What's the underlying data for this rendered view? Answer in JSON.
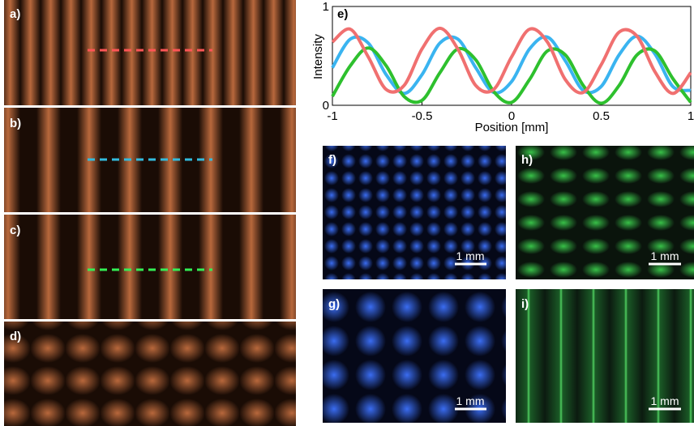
{
  "panels": [
    {
      "label": "a)"
    },
    {
      "label": "b)"
    },
    {
      "label": "c)"
    },
    {
      "label": "d)"
    },
    {
      "label": "f)",
      "scale": "1 mm"
    },
    {
      "label": "h)",
      "scale": "1 mm"
    },
    {
      "label": "g)",
      "scale": "1 mm"
    },
    {
      "label": "i)",
      "scale": "1 mm"
    }
  ],
  "chart_data": {
    "type": "line",
    "label": "e)",
    "xlabel": "Position [mm]",
    "ylabel": "Intensity",
    "x": [
      -1,
      -0.9,
      -0.8,
      -0.7,
      -0.6,
      -0.5,
      -0.4,
      -0.3,
      -0.2,
      -0.1,
      0,
      0.1,
      0.2,
      0.3,
      0.4,
      0.5,
      0.6,
      0.7,
      0.8,
      0.9,
      1
    ],
    "series": [
      {
        "color": "#3ab4f0",
        "values": [
          0.38,
          0.67,
          0.63,
          0.31,
          0.12,
          0.31,
          0.63,
          0.67,
          0.38,
          0.13,
          0.24,
          0.57,
          0.69,
          0.45,
          0.15,
          0.19,
          0.51,
          0.7,
          0.52,
          0.19,
          0.15
        ]
      },
      {
        "color": "#2ec02e",
        "values": [
          0.09,
          0.4,
          0.58,
          0.4,
          0.09,
          0.05,
          0.33,
          0.57,
          0.46,
          0.14,
          0.03,
          0.26,
          0.55,
          0.51,
          0.2,
          0.02,
          0.2,
          0.51,
          0.55,
          0.27,
          0.03
        ]
      },
      {
        "color": "#f07070",
        "values": [
          0.64,
          0.77,
          0.49,
          0.16,
          0.2,
          0.57,
          0.78,
          0.57,
          0.2,
          0.16,
          0.49,
          0.77,
          0.64,
          0.26,
          0.13,
          0.41,
          0.74,
          0.7,
          0.34,
          0.12,
          0.33
        ]
      }
    ],
    "xlim": [
      -1,
      1
    ],
    "xticks": [
      -1,
      -0.5,
      0,
      0.5,
      1
    ],
    "ylim": [
      0,
      1
    ],
    "yticks": [
      0,
      1
    ]
  }
}
